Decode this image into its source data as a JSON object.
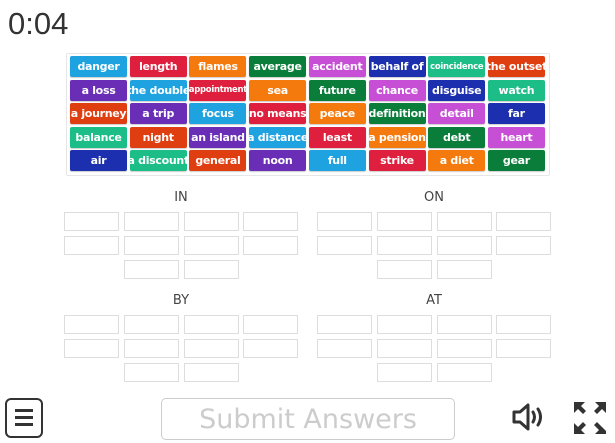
{
  "timer": "0:04",
  "colors": {
    "blue": "#1fa3e0",
    "red": "#de1f3d",
    "orange": "#f47a0e",
    "green": "#0b7d3b",
    "magenta": "#c64fd6",
    "navy": "#1c2fae",
    "teal": "#1dbd88",
    "redorange": "#de3e10",
    "purple": "#6a2db6"
  },
  "tiles": [
    [
      "danger",
      "blue"
    ],
    [
      "length",
      "red"
    ],
    [
      "flames",
      "orange"
    ],
    [
      "average",
      "green"
    ],
    [
      "accident",
      "magenta"
    ],
    [
      "behalf of",
      "navy"
    ],
    [
      "coincidence",
      "teal"
    ],
    [
      "the outset",
      "redorange"
    ],
    [
      "a loss",
      "purple"
    ],
    [
      "the double",
      "blue"
    ],
    [
      "appointment",
      "red"
    ],
    [
      "sea",
      "orange"
    ],
    [
      "future",
      "green"
    ],
    [
      "chance",
      "magenta"
    ],
    [
      "disguise",
      "navy"
    ],
    [
      "watch",
      "teal"
    ],
    [
      "a journey",
      "redorange"
    ],
    [
      "a trip",
      "purple"
    ],
    [
      "focus",
      "blue"
    ],
    [
      "no means",
      "red"
    ],
    [
      "peace",
      "orange"
    ],
    [
      "definition",
      "green"
    ],
    [
      "detail",
      "magenta"
    ],
    [
      "far",
      "navy"
    ],
    [
      "balance",
      "teal"
    ],
    [
      "night",
      "redorange"
    ],
    [
      "an island",
      "purple"
    ],
    [
      "a distance",
      "blue"
    ],
    [
      "least",
      "red"
    ],
    [
      "a pension",
      "orange"
    ],
    [
      "debt",
      "green"
    ],
    [
      "heart",
      "magenta"
    ],
    [
      "air",
      "navy"
    ],
    [
      "a discount",
      "teal"
    ],
    [
      "general",
      "redorange"
    ],
    [
      "noon",
      "purple"
    ],
    [
      "full",
      "blue"
    ],
    [
      "strike",
      "red"
    ],
    [
      "a diet",
      "orange"
    ],
    [
      "gear",
      "green"
    ]
  ],
  "groups": [
    "IN",
    "ON",
    "BY",
    "AT"
  ],
  "submit_label": "Submit Answers"
}
